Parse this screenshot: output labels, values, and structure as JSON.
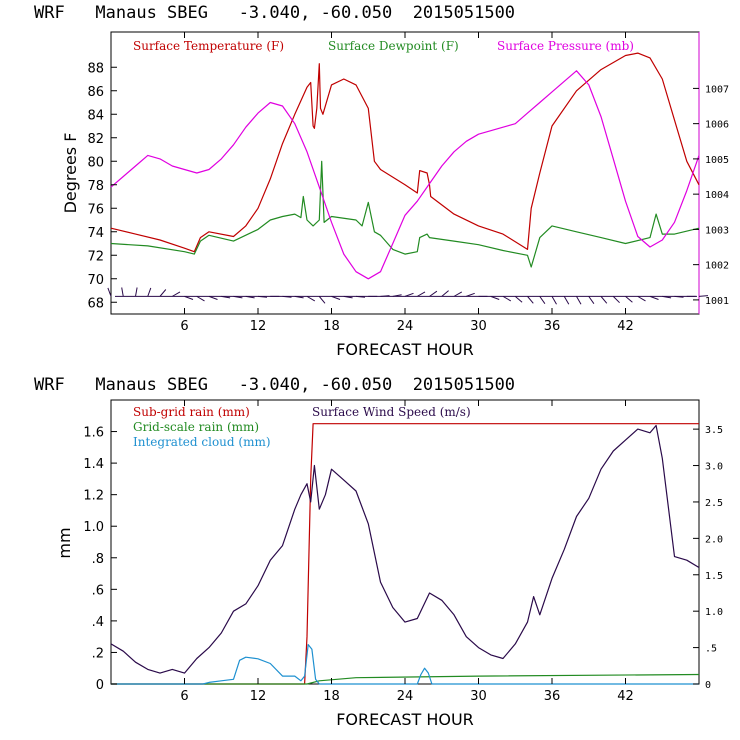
{
  "top_panel": {
    "title": "WRF   Manaus SBEG   -3.040, -60.050  2015051500",
    "chart_data": {
      "type": "line",
      "title": "WRF   Manaus SBEG   -3.040, -60.050  2015051500",
      "xlabel": "FORECAST HOUR",
      "ylabel": "Degrees F",
      "y2label": "",
      "xlim": [
        0,
        48
      ],
      "ylim": [
        67,
        91
      ],
      "y2lim": [
        1000.6,
        1008.6
      ],
      "xticks": [
        "6",
        "12",
        "18",
        "24",
        "30",
        "36",
        "42"
      ],
      "xtick_values": [
        6,
        12,
        18,
        24,
        30,
        36,
        42
      ],
      "yticks": [
        "68",
        "70",
        "72",
        "74",
        "76",
        "78",
        "80",
        "82",
        "84",
        "86",
        "88"
      ],
      "ytick_values": [
        68,
        70,
        72,
        74,
        76,
        78,
        80,
        82,
        84,
        86,
        88
      ],
      "y2ticks": [
        "1001",
        "1002",
        "1003",
        "1004",
        "1005",
        "1006",
        "1007"
      ],
      "y2tick_values": [
        1001,
        1002,
        1003,
        1004,
        1005,
        1006,
        1007
      ],
      "legend": [
        "Surface Temperature (F)",
        "Surface Dewpoint (F)",
        "Surface Pressure (mb)"
      ],
      "legend_placement": "top-left inside",
      "grid": false,
      "series": [
        {
          "name": "Surface Temperature (F)",
          "color": "#c00000",
          "axis": "left",
          "x": [
            0,
            2,
            4,
            6,
            6.8,
            7.3,
            8,
            10,
            11,
            12,
            13,
            14,
            15,
            16,
            16.3,
            16.5,
            16.6,
            16.8,
            17,
            17.1,
            17.3,
            18,
            19,
            20,
            21,
            21.5,
            22,
            24,
            25,
            25.2,
            25.8,
            26,
            26.1,
            28,
            30,
            32,
            34,
            34.3,
            35,
            36,
            38,
            40,
            42,
            43,
            44,
            45,
            46,
            47,
            48
          ],
          "y": [
            74.3,
            73.8,
            73.3,
            72.6,
            72.3,
            73.5,
            74.0,
            73.6,
            74.5,
            76.0,
            78.5,
            81.5,
            84.0,
            86.3,
            86.7,
            83.0,
            82.8,
            84.5,
            88.3,
            84.5,
            84.0,
            86.5,
            87.0,
            86.5,
            84.5,
            80.0,
            79.3,
            78.0,
            77.3,
            79.2,
            79.0,
            78.0,
            77.0,
            75.5,
            74.5,
            73.8,
            72.5,
            76.0,
            79.0,
            83.0,
            86.0,
            87.8,
            89.0,
            89.2,
            88.8,
            87.0,
            83.5,
            80.0,
            78.0
          ]
        },
        {
          "name": "Surface Dewpoint (F)",
          "color": "#228b22",
          "axis": "left",
          "x": [
            0,
            3,
            6,
            6.8,
            7.3,
            8,
            10,
            12,
            13,
            14,
            15,
            15.5,
            15.7,
            16,
            16.5,
            17,
            17.2,
            17.4,
            18,
            20,
            20.5,
            21,
            21.5,
            22,
            23,
            24,
            25,
            25.2,
            25.8,
            26,
            28,
            30,
            32,
            34,
            34.3,
            35,
            36,
            38,
            40,
            42,
            44,
            44.5,
            45,
            46,
            48
          ],
          "y": [
            73.0,
            72.8,
            72.3,
            72.1,
            73.2,
            73.7,
            73.2,
            74.2,
            75.0,
            75.3,
            75.5,
            75.2,
            77.0,
            75.0,
            74.5,
            75.0,
            80.0,
            74.8,
            75.3,
            75.0,
            74.5,
            76.5,
            74.0,
            73.7,
            72.5,
            72.1,
            72.3,
            73.5,
            73.8,
            73.5,
            73.2,
            72.9,
            72.4,
            72.0,
            71.0,
            73.5,
            74.5,
            74.0,
            73.5,
            73.0,
            73.5,
            75.5,
            73.8,
            73.8,
            74.3
          ]
        },
        {
          "name": "Surface Pressure (mb)",
          "color": "#e000e0",
          "axis": "right",
          "x": [
            0,
            1,
            2,
            3,
            4,
            5,
            6,
            7,
            8,
            9,
            10,
            11,
            12,
            13,
            14,
            15,
            16,
            17,
            18,
            19,
            20,
            21,
            22,
            23,
            24,
            25,
            26,
            27,
            28,
            29,
            30,
            31,
            32,
            33,
            34,
            35,
            36,
            37,
            38,
            39,
            40,
            41,
            42,
            43,
            44,
            45,
            46,
            47,
            48
          ],
          "y": [
            1004.2,
            1004.5,
            1004.8,
            1005.1,
            1005.0,
            1004.8,
            1004.7,
            1004.6,
            1004.7,
            1005.0,
            1005.4,
            1005.9,
            1006.3,
            1006.6,
            1006.5,
            1006.0,
            1005.2,
            1004.2,
            1003.2,
            1002.3,
            1001.8,
            1001.6,
            1001.8,
            1002.6,
            1003.4,
            1003.8,
            1004.3,
            1004.8,
            1005.2,
            1005.5,
            1005.7,
            1005.8,
            1005.9,
            1006.0,
            1006.3,
            1006.6,
            1006.9,
            1007.2,
            1007.5,
            1007.1,
            1006.2,
            1005.0,
            1003.8,
            1002.8,
            1002.5,
            1002.7,
            1003.2,
            1004.1,
            1005.1
          ]
        }
      ],
      "wind_barbs": {
        "color": "#2a0a4a",
        "y_level": 68.5,
        "x": [
          0,
          1,
          2,
          3,
          4,
          5,
          6,
          7,
          8,
          9,
          10,
          11,
          12,
          13,
          14,
          15,
          16,
          17,
          18,
          19,
          20,
          21,
          22,
          23,
          24,
          25,
          26,
          27,
          28,
          29,
          30,
          31,
          32,
          33,
          34,
          35,
          36,
          37,
          38,
          39,
          40,
          41,
          42,
          43,
          44,
          45,
          46,
          47,
          48
        ],
        "direction_deg": [
          340,
          350,
          10,
          20,
          40,
          60,
          110,
          120,
          110,
          100,
          100,
          100,
          95,
          90,
          95,
          100,
          120,
          140,
          110,
          100,
          95,
          90,
          85,
          80,
          70,
          60,
          55,
          50,
          60,
          70,
          90,
          110,
          120,
          130,
          140,
          145,
          150,
          150,
          150,
          145,
          140,
          135,
          130,
          120,
          110,
          100,
          95,
          90,
          85
        ]
      }
    }
  },
  "bottom_panel": {
    "title": "WRF   Manaus SBEG   -3.040, -60.050  2015051500",
    "chart_data": {
      "type": "line",
      "title": "WRF   Manaus SBEG   -3.040, -60.050  2015051500",
      "xlabel": "FORECAST HOUR",
      "ylabel": "mm",
      "y2label": "",
      "xlim": [
        0,
        48
      ],
      "ylim": [
        0,
        1.8
      ],
      "y2lim": [
        0,
        3.9
      ],
      "xticks": [
        "6",
        "12",
        "18",
        "24",
        "30",
        "36",
        "42"
      ],
      "xtick_values": [
        6,
        12,
        18,
        24,
        30,
        36,
        42
      ],
      "yticks": [
        "0",
        ".2",
        ".4",
        ".6",
        ".8",
        "1.0",
        "1.2",
        "1.4",
        "1.6"
      ],
      "ytick_values": [
        0,
        0.2,
        0.4,
        0.6,
        0.8,
        1.0,
        1.2,
        1.4,
        1.6
      ],
      "y2ticks": [
        "0",
        ".5",
        "1.0",
        "1.5",
        "2.0",
        "2.5",
        "3.0",
        "3.5"
      ],
      "y2tick_values": [
        0,
        0.5,
        1.0,
        1.5,
        2.0,
        2.5,
        3.0,
        3.5
      ],
      "legend": [
        "Sub-grid rain (mm)",
        "Surface Wind Speed (m/s)",
        "Grid-scale rain (mm)",
        "Integrated cloud (mm)"
      ],
      "legend_placement": "top-left inside",
      "grid": false,
      "series": [
        {
          "name": "Sub-grid rain (mm)",
          "color": "#c00000",
          "axis": "left",
          "x": [
            0,
            15.8,
            16.0,
            16.3,
            16.5,
            48
          ],
          "y": [
            0,
            0,
            0.3,
            1.3,
            1.65,
            1.65
          ]
        },
        {
          "name": "Surface Wind Speed (m/s)",
          "color": "#2a0a4a",
          "axis": "right",
          "x": [
            0,
            1,
            2,
            3,
            4,
            5,
            6,
            7,
            8,
            9,
            10,
            11,
            12,
            13,
            14,
            15,
            15.5,
            16,
            16.3,
            16.6,
            17,
            17.5,
            18,
            19,
            20,
            21,
            22,
            23,
            24,
            25,
            26,
            27,
            28,
            29,
            30,
            31,
            32,
            33,
            34,
            34.5,
            35,
            36,
            37,
            38,
            39,
            40,
            41,
            42,
            43,
            44,
            44.5,
            45,
            46,
            47,
            48
          ],
          "y": [
            0.55,
            0.45,
            0.3,
            0.2,
            0.15,
            0.2,
            0.15,
            0.35,
            0.5,
            0.7,
            1.0,
            1.1,
            1.35,
            1.7,
            1.9,
            2.4,
            2.6,
            2.75,
            2.5,
            3.0,
            2.4,
            2.6,
            2.95,
            2.8,
            2.65,
            2.2,
            1.4,
            1.05,
            0.85,
            0.9,
            1.25,
            1.15,
            0.95,
            0.65,
            0.5,
            0.4,
            0.35,
            0.55,
            0.85,
            1.2,
            0.95,
            1.45,
            1.85,
            2.3,
            2.55,
            2.95,
            3.2,
            3.35,
            3.5,
            3.45,
            3.55,
            3.1,
            1.75,
            1.7,
            1.6
          ]
        },
        {
          "name": "Grid-scale rain (mm)",
          "color": "#228b22",
          "axis": "left",
          "x": [
            0,
            16,
            17,
            20,
            30,
            48
          ],
          "y": [
            0,
            0,
            0.02,
            0.04,
            0.05,
            0.06
          ]
        },
        {
          "name": "Integrated cloud (mm)",
          "color": "#1e90d0",
          "axis": "left",
          "x": [
            0,
            7.5,
            8,
            9,
            10,
            10.5,
            11,
            12,
            13,
            14,
            15,
            15.5,
            15.8,
            16.1,
            16.4,
            16.7,
            17,
            20,
            25,
            25.3,
            25.6,
            25.9,
            26.2,
            30,
            48
          ],
          "y": [
            0,
            0,
            0.01,
            0.02,
            0.03,
            0.15,
            0.17,
            0.16,
            0.13,
            0.05,
            0.05,
            0.02,
            0.05,
            0.25,
            0.22,
            0.03,
            0.0,
            0.0,
            0.0,
            0.06,
            0.1,
            0.07,
            0.0,
            0.0,
            0.0
          ]
        }
      ]
    }
  }
}
